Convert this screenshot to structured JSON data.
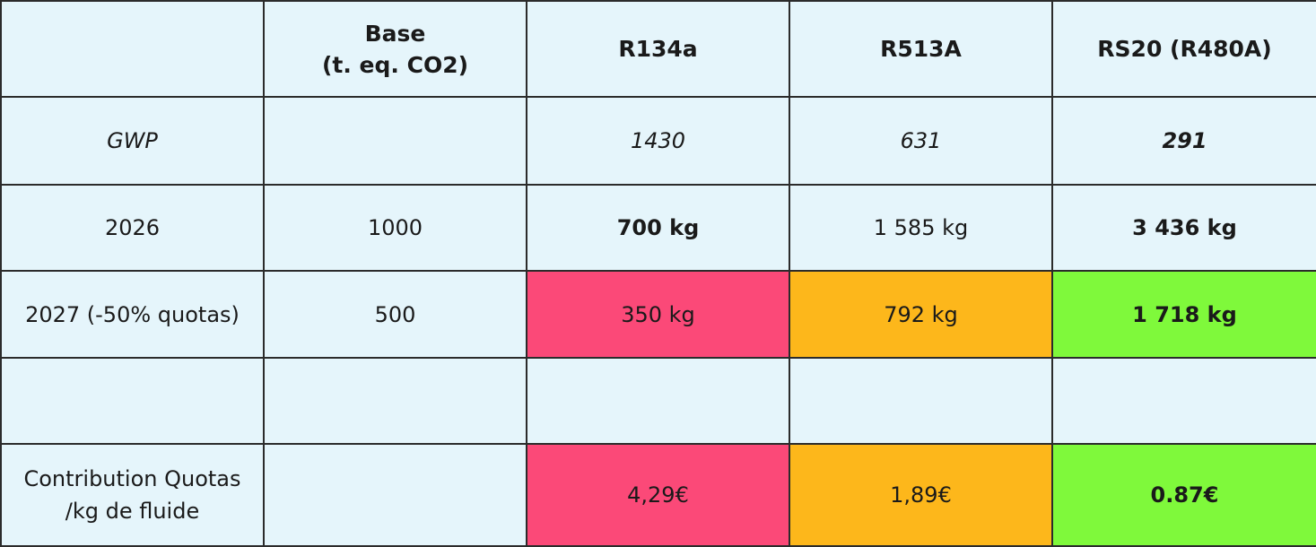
{
  "table": {
    "header": [
      null,
      "Base\n(t. eq. CO2)",
      "R134a",
      "R513A",
      "RS20 (R480A)"
    ],
    "rows": [
      [
        "GWP",
        null,
        "1430",
        "631",
        "291"
      ],
      [
        "2026",
        "1000",
        "700 kg",
        "1 585 kg",
        "3 436 kg"
      ],
      [
        "2027 (-50% quotas)",
        "500",
        "350 kg",
        "792 kg",
        "1 718 kg"
      ],
      [
        null,
        null,
        null,
        null,
        null
      ],
      [
        "Contribution Quotas\n/kg de fluide",
        null,
        "4,29€",
        "1,89€",
        "0.87€"
      ]
    ]
  }
}
